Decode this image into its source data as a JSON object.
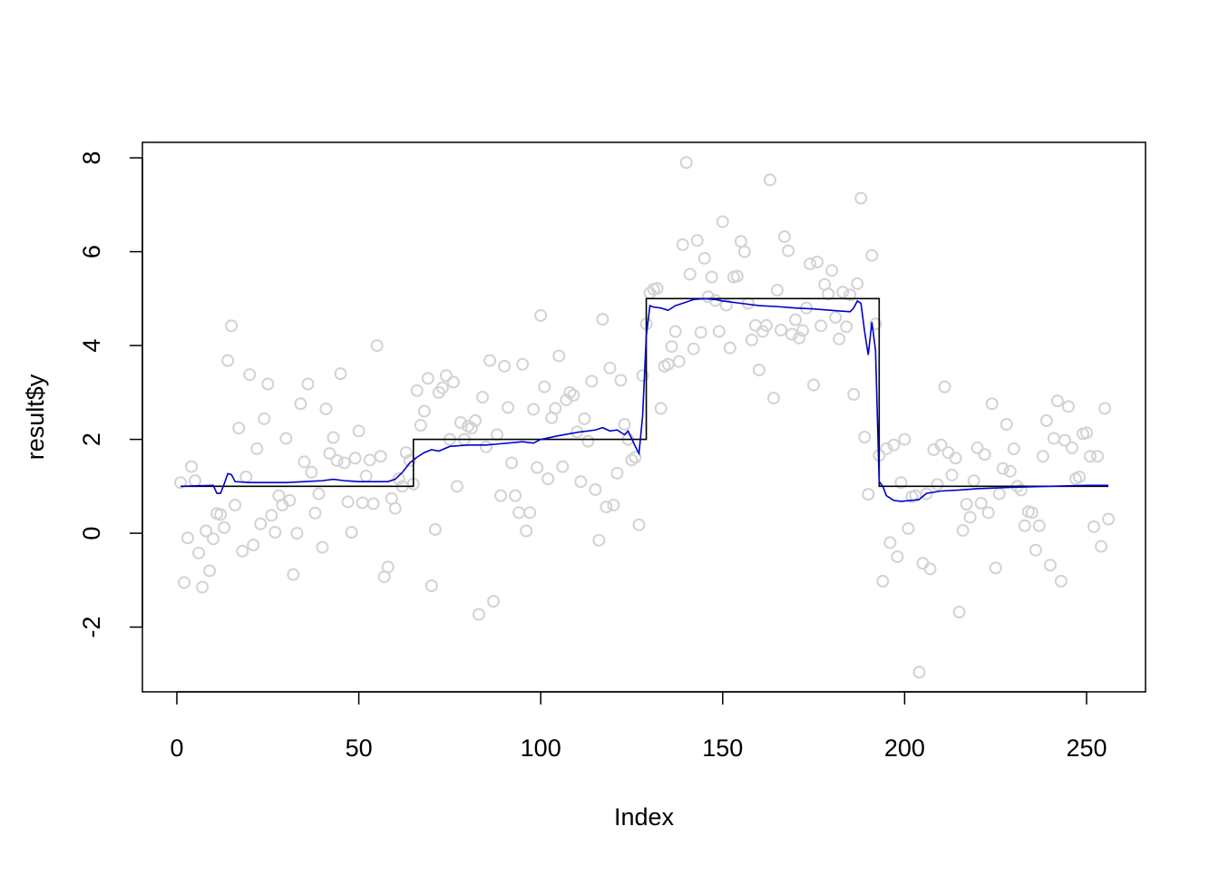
{
  "chart_data": {
    "type": "scatter",
    "xlabel": "Index",
    "ylabel": "result$y",
    "xlim": [
      -9.47,
      266.2
    ],
    "ylim": [
      -3.38,
      8.33
    ],
    "xticks": [
      0,
      50,
      100,
      150,
      200,
      250
    ],
    "yticks": [
      -2,
      0,
      2,
      4,
      6,
      8
    ],
    "series": [
      {
        "type": "scatter",
        "color": "#d3d3d3",
        "x": [
          1,
          2,
          3,
          4,
          5,
          6,
          7,
          8,
          9,
          10,
          11,
          12,
          13,
          14,
          15,
          16,
          17,
          18,
          19,
          20,
          21,
          22,
          23,
          24,
          25,
          26,
          27,
          28,
          29,
          30,
          31,
          32,
          33,
          34,
          35,
          36,
          37,
          38,
          39,
          40,
          41,
          42,
          43,
          44,
          45,
          46,
          47,
          48,
          49,
          50,
          51,
          52,
          53,
          54,
          55,
          56,
          57,
          58,
          59,
          60,
          61,
          62,
          63,
          64,
          65,
          66,
          67,
          68,
          69,
          70,
          71,
          72,
          73,
          74,
          75,
          76,
          77,
          78,
          79,
          80,
          81,
          82,
          83,
          84,
          85,
          86,
          87,
          88,
          89,
          90,
          91,
          92,
          93,
          94,
          95,
          96,
          97,
          98,
          99,
          100,
          101,
          102,
          103,
          104,
          105,
          106,
          107,
          108,
          109,
          110,
          111,
          112,
          113,
          114,
          115,
          116,
          117,
          118,
          119,
          120,
          121,
          122,
          123,
          124,
          125,
          126,
          127,
          128,
          129,
          130,
          131,
          132,
          133,
          134,
          135,
          136,
          137,
          138,
          139,
          140,
          141,
          142,
          143,
          144,
          145,
          146,
          147,
          148,
          149,
          150,
          151,
          152,
          153,
          154,
          155,
          156,
          157,
          158,
          159,
          160,
          161,
          162,
          163,
          164,
          165,
          166,
          167,
          168,
          169,
          170,
          171,
          172,
          173,
          174,
          175,
          176,
          177,
          178,
          179,
          180,
          181,
          182,
          183,
          184,
          185,
          186,
          187,
          188,
          189,
          190,
          191,
          192,
          193,
          194,
          195,
          196,
          197,
          198,
          199,
          200,
          201,
          202,
          203,
          204,
          205,
          206,
          207,
          208,
          209,
          210,
          211,
          212,
          213,
          214,
          215,
          216,
          217,
          218,
          219,
          220,
          221,
          222,
          223,
          224,
          225,
          226,
          227,
          228,
          229,
          230,
          231,
          232,
          233,
          234,
          235,
          236,
          237,
          238,
          239,
          240,
          241,
          242,
          243,
          244,
          245,
          246,
          247,
          248,
          249,
          250,
          251,
          252,
          253,
          254,
          255,
          256
        ],
        "values": [
          1.08,
          -1.05,
          -0.1,
          1.42,
          1.12,
          -0.42,
          -1.15,
          0.05,
          -0.8,
          -0.12,
          0.42,
          0.4,
          0.12,
          3.68,
          4.42,
          0.6,
          2.24,
          -0.38,
          1.2,
          3.38,
          -0.25,
          1.8,
          0.2,
          2.44,
          3.18,
          0.38,
          0.02,
          0.8,
          0.6,
          2.02,
          0.7,
          -0.88,
          0.0,
          2.76,
          1.52,
          3.18,
          1.3,
          0.43,
          0.84,
          -0.3,
          2.65,
          1.7,
          2.04,
          1.55,
          3.4,
          1.5,
          0.67,
          0.02,
          1.6,
          2.18,
          0.65,
          1.22,
          1.56,
          0.63,
          4.0,
          1.64,
          -0.93,
          -0.72,
          0.74,
          0.53,
          1.16,
          1.0,
          1.72,
          1.55,
          1.05,
          3.04,
          2.3,
          2.6,
          3.3,
          -1.12,
          0.08,
          3.0,
          3.1,
          3.36,
          2.0,
          3.22,
          1.0,
          2.36,
          2.0,
          2.28,
          2.24,
          2.4,
          -1.73,
          2.9,
          1.84,
          3.68,
          -1.45,
          2.1,
          0.8,
          3.56,
          2.68,
          1.5,
          0.8,
          0.44,
          3.6,
          0.05,
          0.44,
          2.64,
          1.4,
          4.64,
          3.12,
          1.16,
          2.46,
          2.66,
          3.78,
          1.42,
          2.84,
          3.0,
          2.94,
          2.16,
          1.1,
          2.44,
          1.96,
          3.24,
          0.93,
          -0.15,
          4.56,
          0.56,
          3.52,
          0.6,
          1.28,
          3.26,
          2.32,
          2.0,
          1.56,
          1.62,
          0.18,
          3.36,
          4.46,
          5.12,
          5.2,
          5.22,
          2.66,
          3.56,
          3.6,
          3.98,
          4.3,
          3.66,
          6.15,
          7.9,
          5.52,
          3.93,
          6.24,
          4.28,
          5.86,
          5.04,
          5.46,
          4.96,
          4.3,
          6.64,
          4.86,
          3.95,
          5.46,
          5.48,
          6.22,
          6.0,
          4.9,
          4.12,
          4.43,
          3.48,
          4.3,
          4.43,
          7.53,
          2.88,
          5.18,
          4.33,
          6.32,
          6.02,
          4.24,
          4.55,
          4.16,
          4.32,
          4.8,
          5.74,
          3.16,
          5.78,
          4.42,
          5.3,
          5.1,
          5.6,
          4.6,
          4.14,
          5.14,
          4.4,
          5.08,
          2.96,
          5.32,
          7.14,
          2.05,
          0.83,
          5.92,
          4.46,
          1.66,
          -1.02,
          1.8,
          -0.2,
          1.88,
          -0.5,
          1.08,
          2.0,
          0.1,
          0.78,
          0.8,
          -2.96,
          -0.64,
          0.84,
          -0.76,
          1.78,
          1.04,
          1.88,
          3.12,
          1.72,
          1.24,
          1.6,
          -1.68,
          0.06,
          0.62,
          0.34,
          1.12,
          1.82,
          0.64,
          1.68,
          0.44,
          2.76,
          -0.74,
          0.84,
          1.38,
          2.32,
          1.32,
          1.8,
          1.0,
          0.92,
          0.16,
          0.46,
          0.44,
          -0.36,
          0.16,
          1.64,
          2.4,
          -0.68,
          2.02,
          2.82,
          -1.02,
          1.98,
          2.7,
          1.82,
          1.16,
          1.2,
          2.12,
          2.14,
          1.64,
          0.14,
          1.64,
          -0.28,
          2.66,
          0.3
        ]
      },
      {
        "type": "step",
        "color": "#000000",
        "x": [
          1,
          65,
          65,
          129,
          129,
          193,
          193,
          256
        ],
        "values": [
          1,
          1,
          2,
          2,
          5,
          5,
          1,
          1
        ]
      },
      {
        "type": "line",
        "color": "#0000cd",
        "x": [
          1,
          10,
          11,
          12,
          13,
          14,
          15,
          16,
          20,
          30,
          35,
          40,
          43,
          46,
          50,
          58,
          60,
          62,
          64,
          66,
          68,
          70,
          72,
          75,
          80,
          85,
          88,
          95,
          98,
          100,
          105,
          110,
          115,
          117,
          119,
          121,
          123,
          124,
          126,
          127,
          128,
          129,
          130,
          131,
          133,
          135,
          137,
          139,
          142,
          145,
          148,
          150,
          155,
          160,
          165,
          170,
          175,
          180,
          185,
          186,
          187,
          188,
          189,
          190,
          191,
          192,
          193,
          194,
          195,
          197,
          199,
          202,
          204,
          206,
          210,
          215,
          220,
          230,
          240,
          250,
          256
        ],
        "values": [
          1.0,
          1.02,
          0.85,
          0.85,
          1.05,
          1.27,
          1.25,
          1.1,
          1.08,
          1.08,
          1.1,
          1.12,
          1.15,
          1.12,
          1.1,
          1.1,
          1.15,
          1.3,
          1.5,
          1.62,
          1.72,
          1.78,
          1.75,
          1.85,
          1.88,
          1.88,
          1.9,
          1.95,
          1.92,
          2.0,
          2.08,
          2.15,
          2.2,
          2.25,
          2.18,
          2.2,
          2.1,
          2.18,
          1.85,
          1.7,
          2.5,
          4.2,
          4.85,
          4.82,
          4.8,
          4.75,
          4.85,
          4.9,
          4.98,
          5.0,
          4.98,
          4.95,
          4.9,
          4.85,
          4.83,
          4.8,
          4.78,
          4.75,
          4.72,
          4.8,
          4.95,
          4.9,
          4.3,
          3.8,
          4.5,
          3.9,
          1.1,
          1.0,
          0.8,
          0.7,
          0.68,
          0.7,
          0.72,
          0.85,
          0.9,
          0.92,
          0.95,
          0.98,
          1.0,
          1.02,
          1.02
        ]
      }
    ]
  }
}
